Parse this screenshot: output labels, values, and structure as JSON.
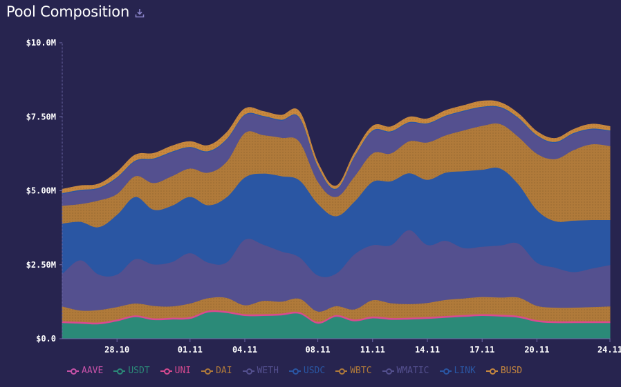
{
  "header": {
    "title": "Pool Composition",
    "download_icon": "download-icon"
  },
  "chart_data": {
    "type": "area",
    "stacked": true,
    "title": "Pool Composition",
    "xlabel": "",
    "ylabel": "",
    "ylim": [
      0,
      10000000
    ],
    "y_ticks": [
      "$0.0",
      "$2.50M",
      "$5.00M",
      "$7.50M",
      "$10.0M"
    ],
    "y_tick_values": [
      0,
      2500000,
      5000000,
      7500000,
      10000000
    ],
    "x_ticks": [
      "28.10",
      "01.11",
      "04.11",
      "08.11",
      "11.11",
      "14.11",
      "17.11",
      "20.11",
      "24.11"
    ],
    "x_tick_days": [
      28,
      32,
      35,
      39,
      42,
      45,
      48,
      51,
      55
    ],
    "x_day_range": [
      25,
      55
    ],
    "x": [
      25,
      26,
      27,
      28,
      29,
      30,
      31,
      32,
      33,
      34,
      35,
      36,
      37,
      38,
      39,
      40,
      41,
      42,
      43,
      44,
      45,
      46,
      47,
      48,
      49,
      50,
      51,
      52,
      53,
      54,
      55
    ],
    "legend_position": "bottom",
    "grid": false,
    "series": [
      {
        "name": "AAVE",
        "color": "#c752a8",
        "values": [
          0.02,
          0.02,
          0.02,
          0.02,
          0.02,
          0.02,
          0.02,
          0.02,
          0.02,
          0.02,
          0.02,
          0.02,
          0.02,
          0.02,
          0.02,
          0.02,
          0.02,
          0.02,
          0.02,
          0.02,
          0.02,
          0.02,
          0.02,
          0.02,
          0.02,
          0.02,
          0.02,
          0.02,
          0.02,
          0.02,
          0.02
        ]
      },
      {
        "name": "USDT",
        "color": "#2b8a78",
        "values": [
          0.52,
          0.5,
          0.48,
          0.58,
          0.72,
          0.62,
          0.64,
          0.66,
          0.88,
          0.86,
          0.76,
          0.76,
          0.78,
          0.83,
          0.5,
          0.73,
          0.58,
          0.68,
          0.63,
          0.64,
          0.66,
          0.7,
          0.73,
          0.76,
          0.74,
          0.7,
          0.56,
          0.52,
          0.52,
          0.52,
          0.52
        ]
      },
      {
        "name": "UNI",
        "color": "#d94a90",
        "values": [
          0.06,
          0.06,
          0.06,
          0.06,
          0.06,
          0.06,
          0.06,
          0.06,
          0.06,
          0.06,
          0.06,
          0.06,
          0.06,
          0.06,
          0.06,
          0.06,
          0.06,
          0.06,
          0.06,
          0.06,
          0.06,
          0.06,
          0.06,
          0.06,
          0.06,
          0.06,
          0.06,
          0.06,
          0.06,
          0.06,
          0.06
        ]
      },
      {
        "name": "DAI",
        "color": "#b07a3a",
        "values": [
          0.5,
          0.38,
          0.42,
          0.42,
          0.4,
          0.42,
          0.38,
          0.46,
          0.42,
          0.45,
          0.3,
          0.45,
          0.4,
          0.45,
          0.35,
          0.3,
          0.34,
          0.55,
          0.5,
          0.46,
          0.48,
          0.54,
          0.56,
          0.58,
          0.58,
          0.62,
          0.48,
          0.46,
          0.46,
          0.48,
          0.5
        ]
      },
      {
        "name": "WETH",
        "color": "#54508f",
        "values": [
          1.1,
          1.7,
          1.2,
          1.1,
          1.5,
          1.4,
          1.5,
          1.7,
          1.2,
          1.2,
          2.22,
          1.9,
          1.7,
          1.4,
          1.22,
          1.1,
          1.86,
          1.86,
          1.96,
          2.5,
          1.96,
          2.0,
          1.7,
          1.7,
          1.76,
          1.82,
          1.46,
          1.35,
          1.2,
          1.3,
          1.4
        ]
      },
      {
        "name": "USDC",
        "color": "#2a56a3",
        "values": [
          1.7,
          1.3,
          1.6,
          2.02,
          2.1,
          1.85,
          1.9,
          1.9,
          1.94,
          2.2,
          2.1,
          2.4,
          2.54,
          2.6,
          2.42,
          1.94,
          1.78,
          2.14,
          2.16,
          1.92,
          2.2,
          2.3,
          2.6,
          2.6,
          2.6,
          2.0,
          1.78,
          1.57,
          1.74,
          1.64,
          1.52
        ]
      },
      {
        "name": "WBTC",
        "color": "#b07a3a",
        "values": [
          0.6,
          0.6,
          0.9,
          0.7,
          0.7,
          0.9,
          1.0,
          0.96,
          1.1,
          1.2,
          1.5,
          1.3,
          1.3,
          1.3,
          0.75,
          0.65,
          0.85,
          0.96,
          0.94,
          1.08,
          1.26,
          1.26,
          1.38,
          1.48,
          1.5,
          1.6,
          1.9,
          2.1,
          2.38,
          2.56,
          2.5
        ]
      },
      {
        "name": "WMATIC",
        "color": "#54508f",
        "values": [
          0.4,
          0.45,
          0.4,
          0.54,
          0.5,
          0.8,
          0.8,
          0.7,
          0.7,
          0.74,
          0.6,
          0.62,
          0.58,
          0.8,
          0.5,
          0.25,
          0.65,
          0.75,
          0.72,
          0.62,
          0.62,
          0.64,
          0.64,
          0.62,
          0.55,
          0.62,
          0.6,
          0.55,
          0.55,
          0.5,
          0.5
        ]
      },
      {
        "name": "LINK",
        "color": "#2a56a3",
        "values": [
          0.03,
          0.03,
          0.03,
          0.03,
          0.03,
          0.03,
          0.03,
          0.03,
          0.03,
          0.03,
          0.03,
          0.03,
          0.03,
          0.03,
          0.03,
          0.03,
          0.03,
          0.03,
          0.03,
          0.03,
          0.03,
          0.03,
          0.03,
          0.03,
          0.03,
          0.03,
          0.03,
          0.03,
          0.03,
          0.03,
          0.03
        ]
      },
      {
        "name": "BUSD",
        "color": "#c8883e",
        "values": [
          0.12,
          0.13,
          0.12,
          0.16,
          0.18,
          0.16,
          0.18,
          0.17,
          0.18,
          0.2,
          0.18,
          0.14,
          0.14,
          0.18,
          0.1,
          0.08,
          0.1,
          0.13,
          0.14,
          0.16,
          0.14,
          0.16,
          0.16,
          0.18,
          0.14,
          0.13,
          0.11,
          0.11,
          0.11,
          0.14,
          0.12
        ]
      }
    ]
  }
}
